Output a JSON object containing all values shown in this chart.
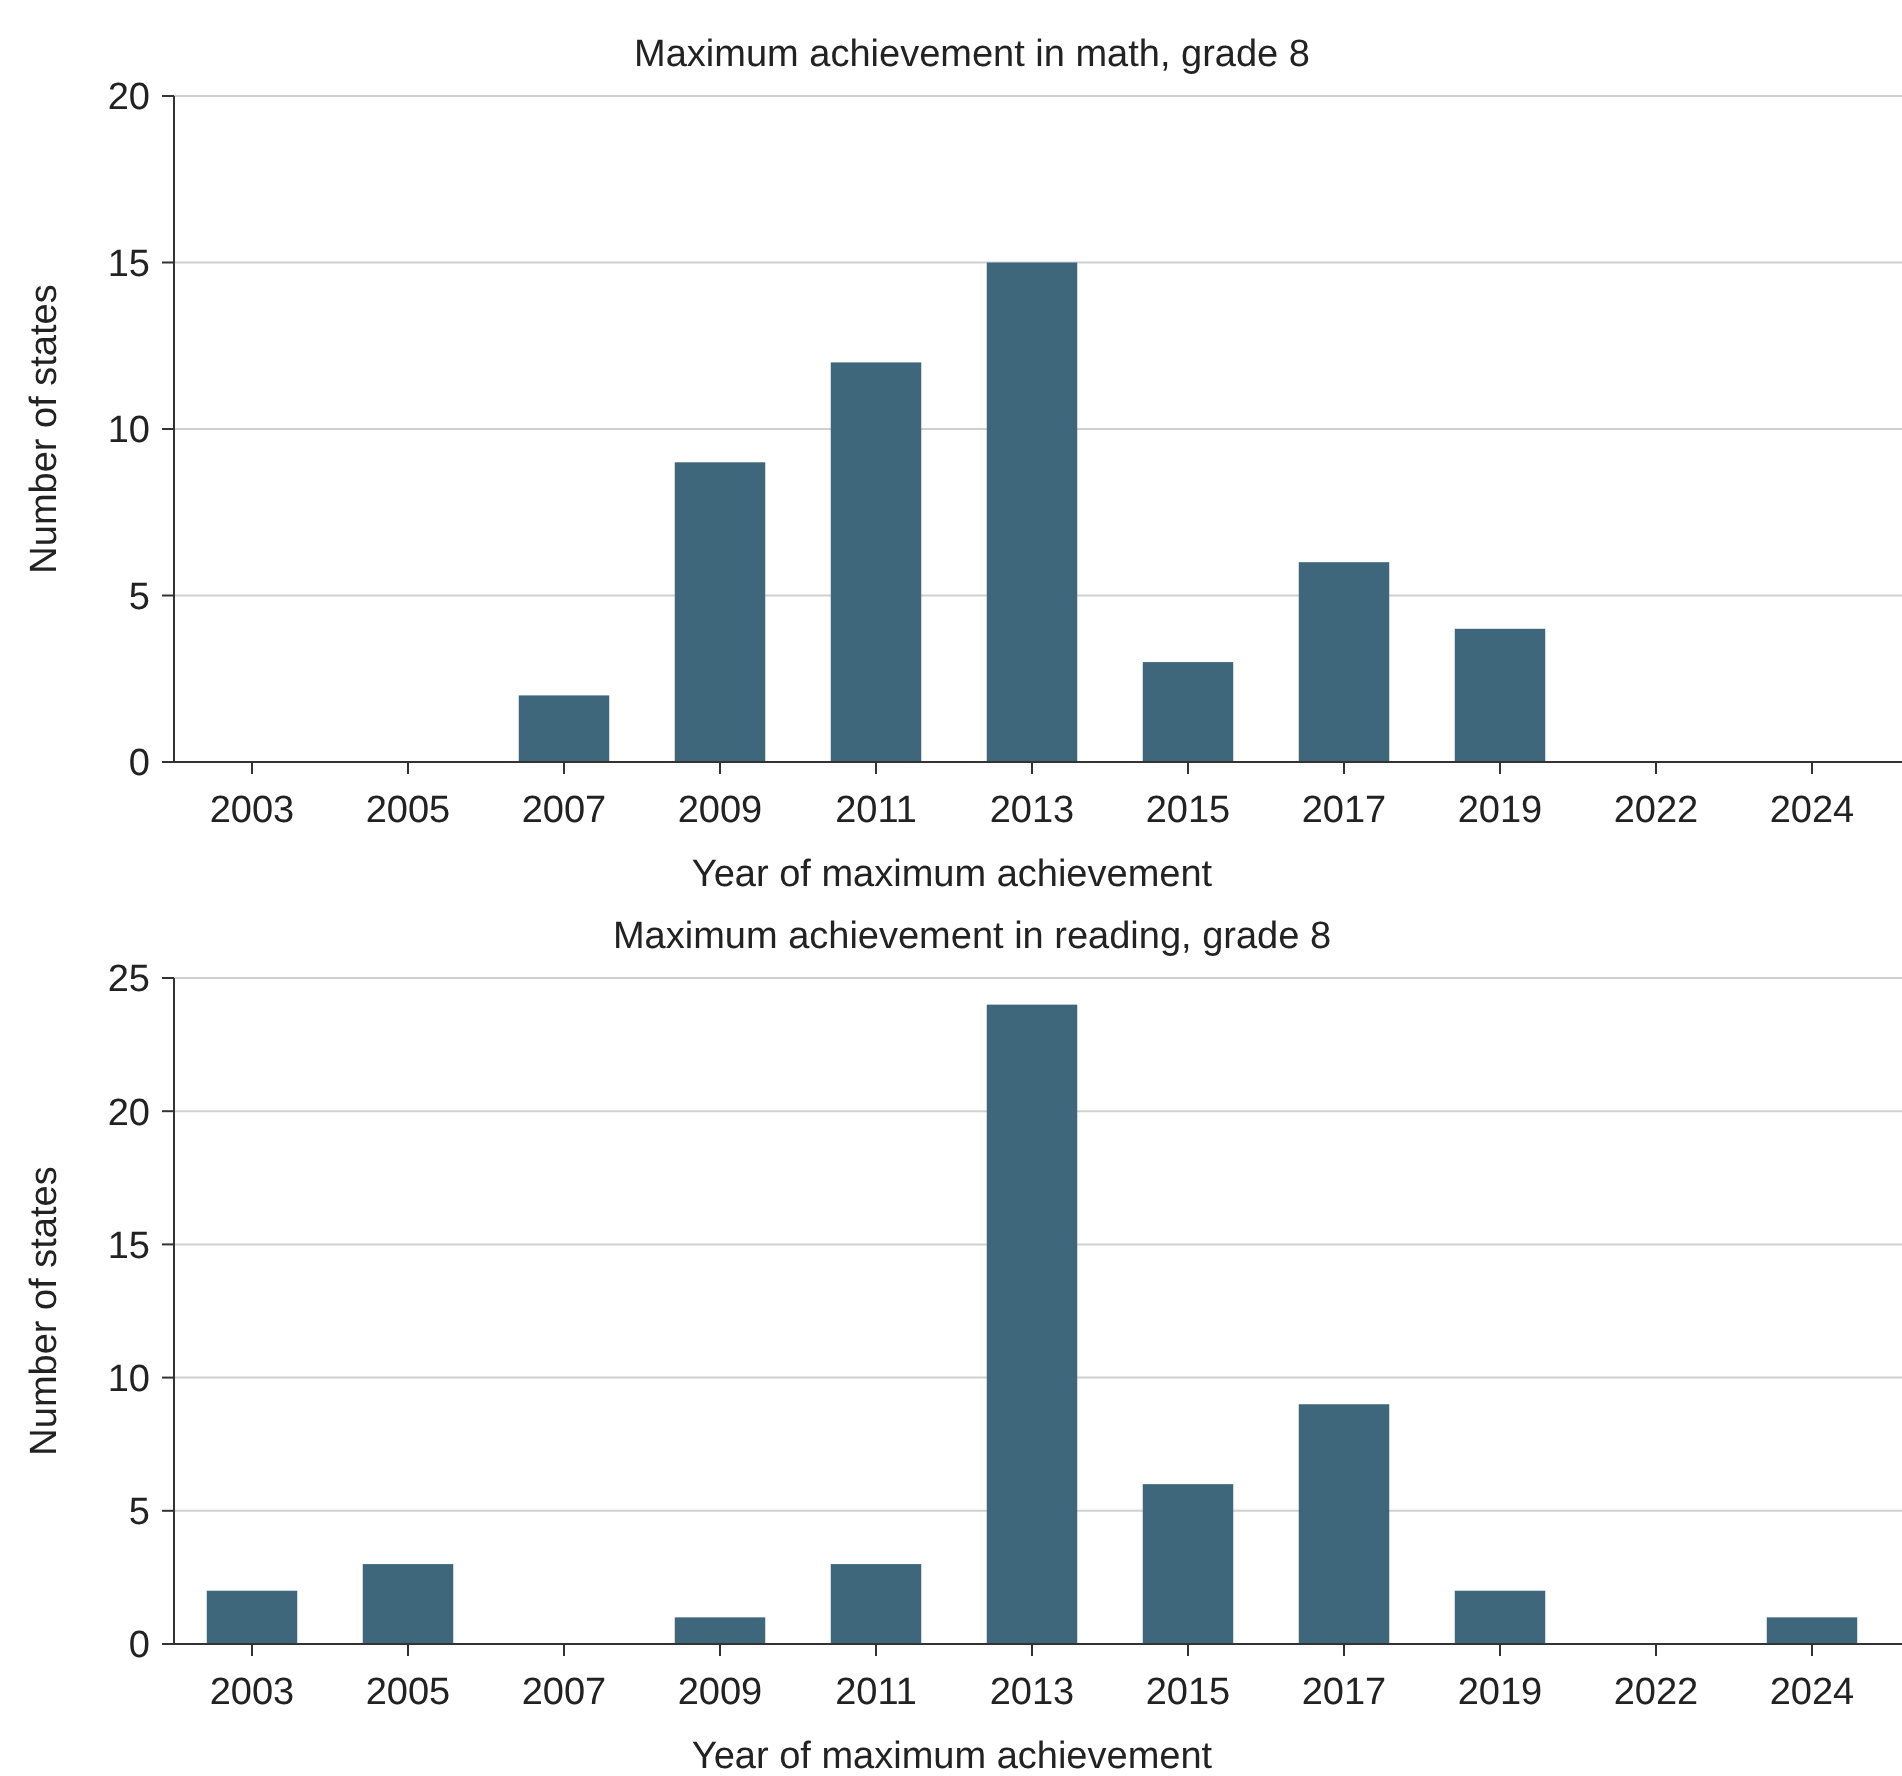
{
  "chart_data": [
    {
      "type": "bar",
      "title": "Maximum achievement in math, grade 8",
      "xlabel": "Year of maximum achievement",
      "ylabel": "Number of states",
      "categories": [
        "2003",
        "2005",
        "2007",
        "2009",
        "2011",
        "2013",
        "2015",
        "2017",
        "2019",
        "2022",
        "2024"
      ],
      "values": [
        0,
        0,
        2,
        9,
        12,
        15,
        3,
        6,
        4,
        0,
        0
      ],
      "color": "#3f677c",
      "ylim": [
        0,
        20
      ],
      "yticks": [
        0,
        5,
        10,
        15,
        20
      ],
      "grid": "y"
    },
    {
      "type": "bar",
      "title": "Maximum achievement in reading, grade 8",
      "xlabel": "Year of maximum achievement",
      "ylabel": "Number of states",
      "categories": [
        "2003",
        "2005",
        "2007",
        "2009",
        "2011",
        "2013",
        "2015",
        "2017",
        "2019",
        "2022",
        "2024"
      ],
      "values": [
        2,
        3,
        0,
        1,
        3,
        24,
        6,
        9,
        2,
        0,
        1
      ],
      "color": "#3f677c",
      "ylim": [
        0,
        25
      ],
      "yticks": [
        0,
        5,
        10,
        15,
        20,
        25
      ],
      "grid": "y"
    }
  ]
}
